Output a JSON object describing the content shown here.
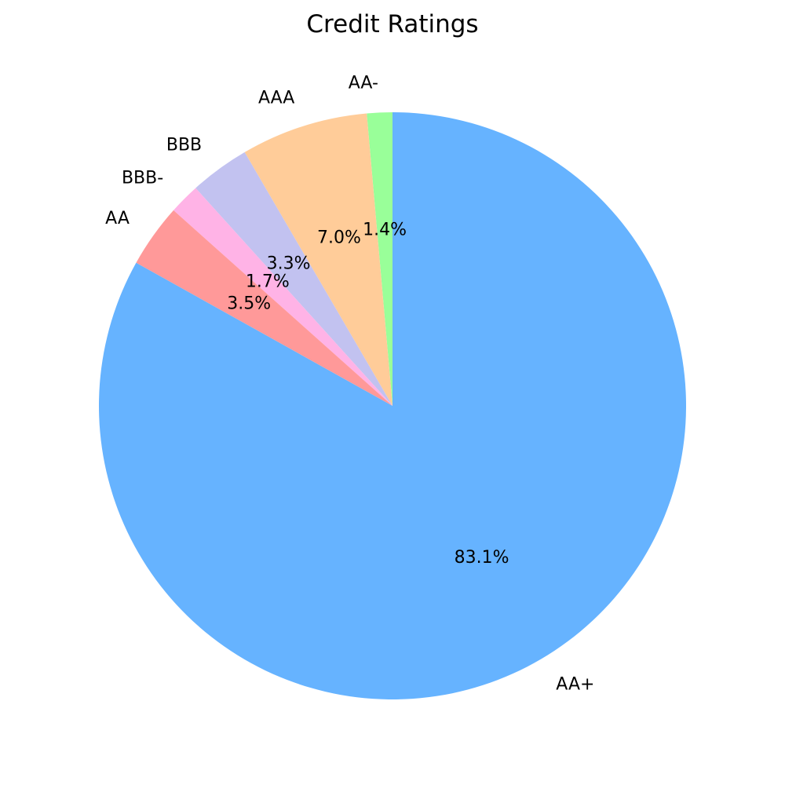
{
  "chart_data": {
    "type": "pie",
    "title": "Credit Ratings",
    "start_angle_deg": 90,
    "direction": "counterclockwise",
    "slices": [
      {
        "label": "AA-",
        "value": 1.4,
        "pct_label": "1.4%",
        "color": "#99ff99"
      },
      {
        "label": "AAA",
        "value": 7.0,
        "pct_label": "7.0%",
        "color": "#ffcc99"
      },
      {
        "label": "BBB",
        "value": 3.3,
        "pct_label": "3.3%",
        "color": "#c2c2f0"
      },
      {
        "label": "BBB-",
        "value": 1.7,
        "pct_label": "1.7%",
        "color": "#ffb3e6"
      },
      {
        "label": "AA",
        "value": 3.5,
        "pct_label": "3.5%",
        "color": "#ff9999"
      },
      {
        "label": "AA+",
        "value": 83.1,
        "pct_label": "83.1%",
        "color": "#66b3ff"
      }
    ]
  }
}
